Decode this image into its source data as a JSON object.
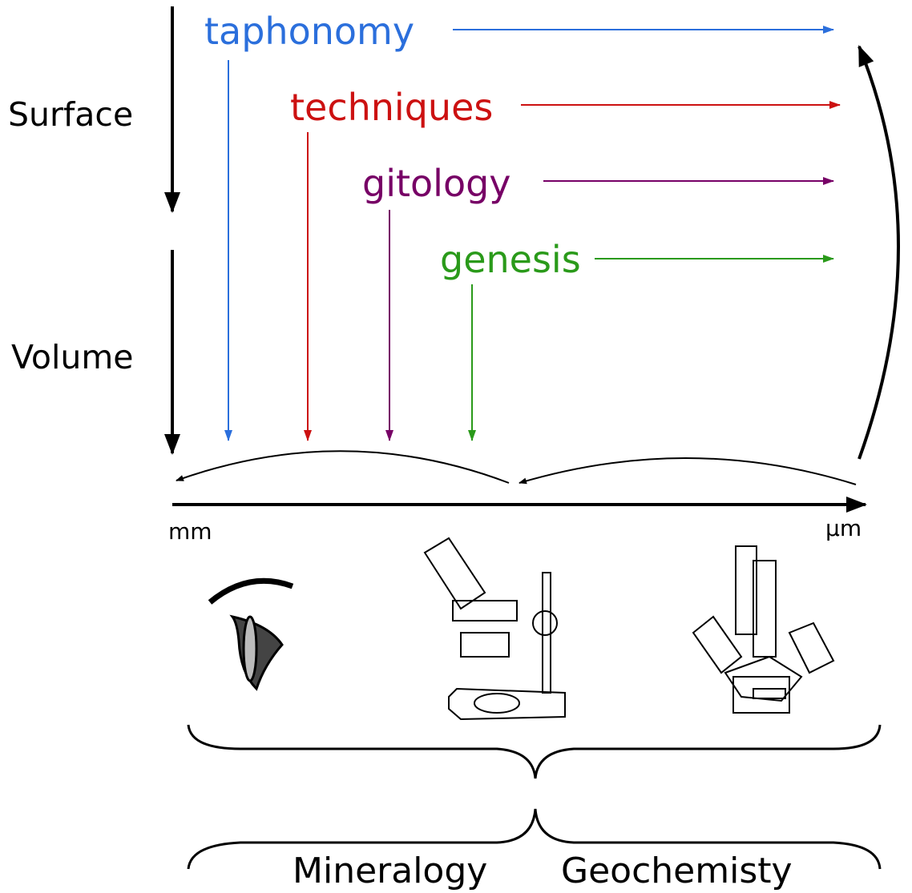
{
  "left_axis": {
    "labels": [
      "Surface",
      "Volume"
    ]
  },
  "topics": [
    {
      "label": "taphonomy",
      "color": "#2b6fdc"
    },
    {
      "label": "techniques",
      "color": "#cc1111"
    },
    {
      "label": "gitology",
      "color": "#770066"
    },
    {
      "label": "genesis",
      "color": "#2a9a1a"
    }
  ],
  "scale": {
    "start": "mm",
    "end": "µm"
  },
  "fields": [
    "Mineralogy",
    "Geochemisty"
  ]
}
